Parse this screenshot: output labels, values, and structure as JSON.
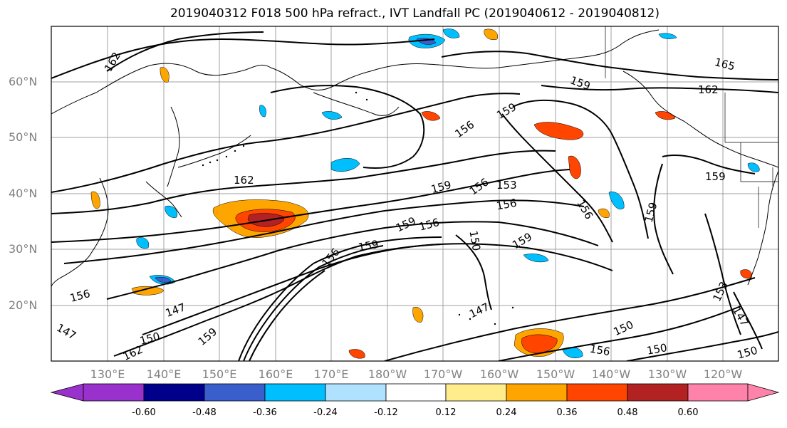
{
  "title": "2019040312 F018 500 hPa refract., IVT Landfall PC (2019040612 - 2019040812)",
  "lat_labels": [
    "60°N",
    "50°N",
    "40°N",
    "30°N",
    "20°N"
  ],
  "lon_labels": [
    "130°E",
    "140°E",
    "150°E",
    "160°E",
    "170°E",
    "180°W",
    "170°W",
    "160°W",
    "150°W",
    "140°W",
    "130°W",
    "120°W"
  ],
  "contour_labels": [
    "162",
    "159",
    "165",
    "162",
    "156",
    "159",
    "162",
    "159",
    "156",
    "153",
    "156",
    "159",
    "159",
    "156",
    "156",
    "150",
    "159",
    "156",
    "159",
    "147",
    "153",
    "147",
    "150",
    "147",
    "150",
    "162",
    "159",
    "156",
    "150",
    "156",
    "150",
    "147",
    "159"
  ],
  "colorbar": {
    "tick_labels": [
      "-0.60",
      "-0.48",
      "-0.36",
      "-0.24",
      "-0.12",
      "0.12",
      "0.24",
      "0.36",
      "0.48",
      "0.60"
    ],
    "colors": [
      "#9932cc",
      "#00008b",
      "#3a5fcd",
      "#00bfff",
      "#b0e2ff",
      "#ffffff",
      "#ffec8b",
      "#ffa500",
      "#ff4500",
      "#b22222",
      "#ff82ab"
    ]
  },
  "colors": {
    "coast": "#000000",
    "contour": "#000000",
    "grid": "#a0a0a0",
    "axis_label": "#808080"
  }
}
